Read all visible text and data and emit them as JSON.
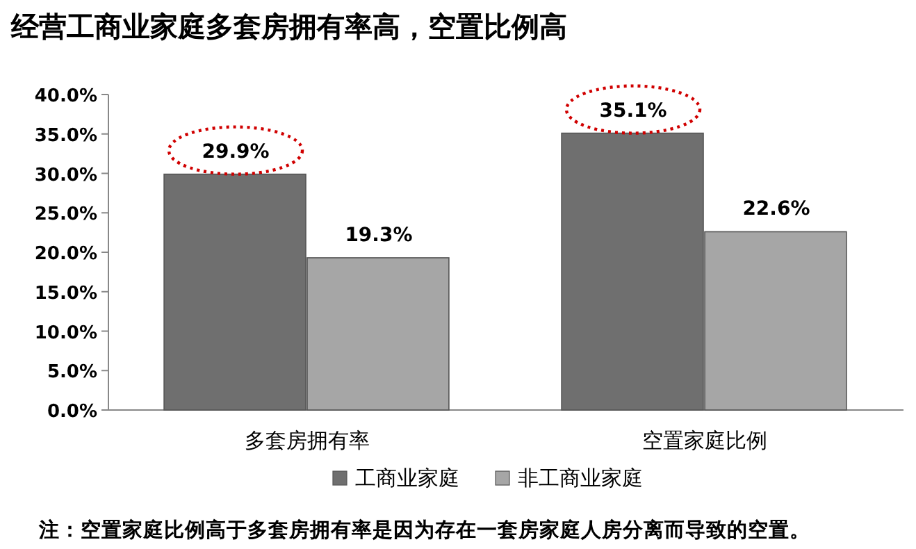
{
  "chart_data": {
    "type": "bar",
    "title": "经营工商业家庭多套房拥有率高，空置比例高",
    "categories": [
      "多套房拥有率",
      "空置家庭比例"
    ],
    "series": [
      {
        "name": "工商业家庭",
        "color": "#6f6f6f",
        "values": [
          29.9,
          35.1
        ],
        "value_labels": [
          "29.9%",
          "35.1%"
        ]
      },
      {
        "name": "非工商业家庭",
        "color": "#a6a6a6",
        "values": [
          19.3,
          22.6
        ],
        "value_labels": [
          "19.3%",
          "22.6%"
        ]
      }
    ],
    "ylim": [
      0,
      40
    ],
    "yticks": [
      {
        "value": 0,
        "label": "0.0%"
      },
      {
        "value": 5,
        "label": "5.0%"
      },
      {
        "value": 10,
        "label": "10.0%"
      },
      {
        "value": 15,
        "label": "15.0%"
      },
      {
        "value": 20,
        "label": "20.0%"
      },
      {
        "value": 25,
        "label": "25.0%"
      },
      {
        "value": 30,
        "label": "30.0%"
      },
      {
        "value": 35,
        "label": "35.0%"
      },
      {
        "value": 40,
        "label": "40.0%"
      }
    ],
    "legend": "bottom",
    "annotations": [
      "注：空置家庭比例高于多套房拥有率是因为存在一套房家庭人房分离而导致的空置。"
    ]
  }
}
